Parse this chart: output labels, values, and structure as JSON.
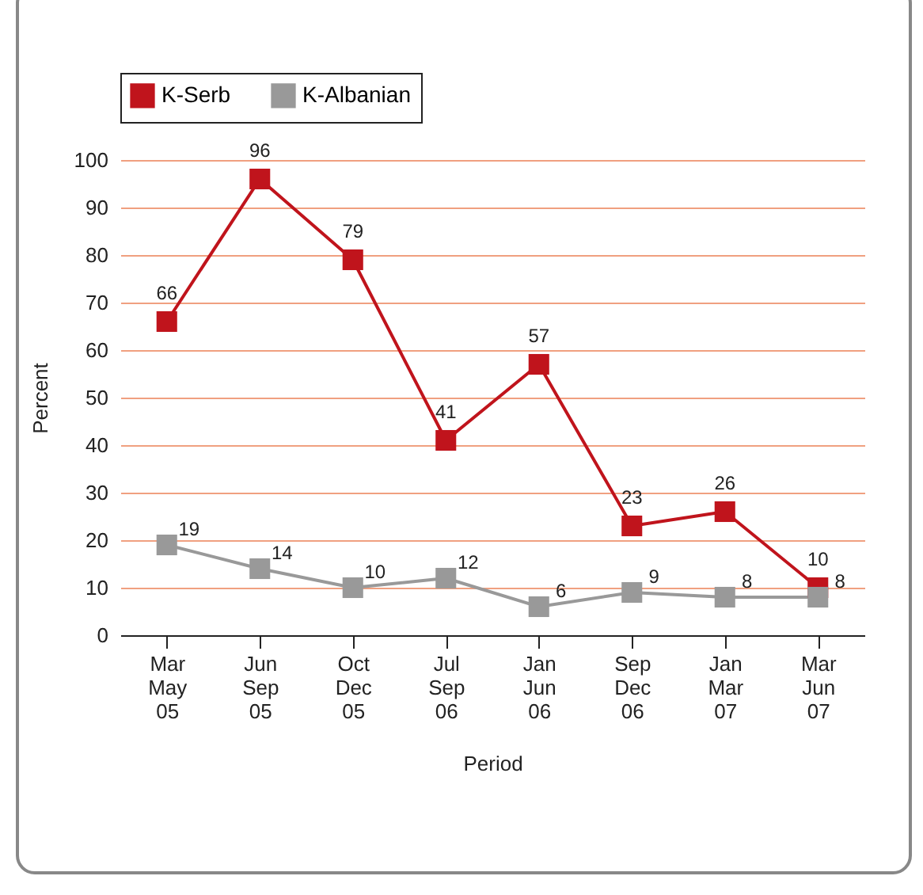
{
  "chart_data": {
    "type": "line",
    "xlabel": "Period",
    "ylabel": "Percent",
    "categories": [
      "Mar May 05",
      "Jun Sep 05",
      "Oct Dec 05",
      "Jul Sep 06",
      "Jan Jun 06",
      "Sep Dec 06",
      "Jan Mar 07",
      "Mar Jun 07"
    ],
    "series": [
      {
        "name": "K-Serb",
        "color": "#c0141c",
        "values": [
          66,
          96,
          79,
          41,
          57,
          23,
          26,
          10
        ]
      },
      {
        "name": "K-Albanian",
        "color": "#999999",
        "values": [
          19,
          14,
          10,
          12,
          6,
          9,
          8,
          8
        ]
      }
    ],
    "ylim": [
      0,
      100
    ],
    "yticks": [
      0,
      10,
      20,
      30,
      40,
      50,
      60,
      70,
      80,
      90,
      100
    ],
    "grid": "y",
    "legend": "top",
    "marker": "square",
    "line_style": "solid",
    "data_labels": true
  }
}
